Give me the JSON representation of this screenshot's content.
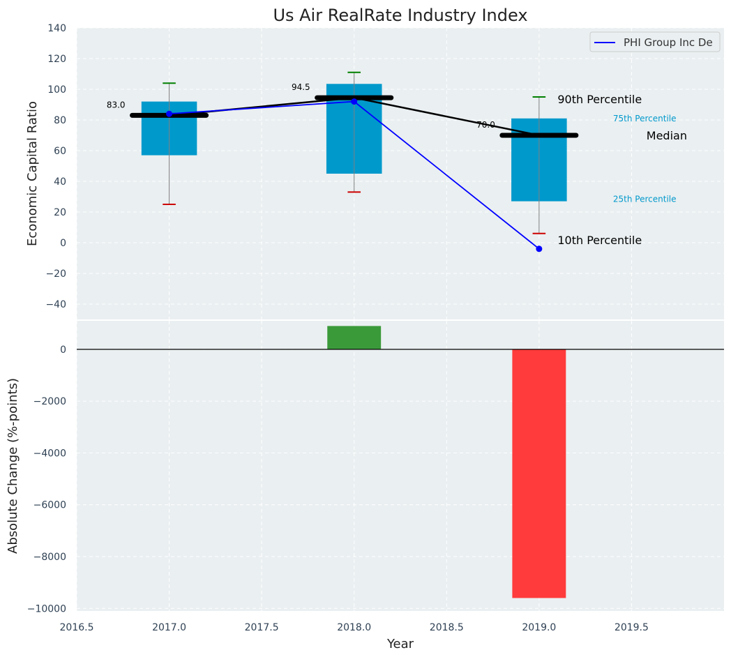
{
  "chart_data": {
    "type": "box-percentile-with-change",
    "title": "Us Air RealRate Industry Index",
    "xlabel": "Year",
    "x_ticks": [
      "2016.5",
      "2017.0",
      "2017.5",
      "2018.0",
      "2018.5",
      "2019.0",
      "2019.5"
    ],
    "xlim": [
      2016.5,
      2020.0
    ],
    "grid": true,
    "top_panel": {
      "ylabel": "Economic Capital Ratio",
      "ylim": [
        -50,
        140
      ],
      "y_ticks": [
        "140",
        "120",
        "100",
        "80",
        "60",
        "40",
        "20",
        "0",
        "−20",
        "−40"
      ],
      "legend_placement": "top-right",
      "boxes": [
        {
          "x": 2017.0,
          "p10": 25,
          "p25": 57,
          "median": 83,
          "p75": 92,
          "p90": 104,
          "median_label": "83.0"
        },
        {
          "x": 2018.0,
          "p10": 33,
          "p25": 45,
          "median": 94.5,
          "p75": 103.5,
          "p90": 111,
          "median_label": "94.5"
        },
        {
          "x": 2019.0,
          "p10": 6,
          "p25": 27,
          "median": 70,
          "p75": 81,
          "p90": 95,
          "median_label": "70.0"
        }
      ],
      "company_series": {
        "name": "PHI Group Inc De",
        "color": "#0000ff",
        "x": [
          2017.0,
          2018.0,
          2019.0
        ],
        "values": [
          84,
          92,
          -4
        ]
      },
      "annotations": {
        "p90": "90th Percentile",
        "p75": "75th Percentile",
        "median": "Median",
        "p25": "25th Percentile",
        "p10": "10th Percentile"
      }
    },
    "bottom_panel": {
      "ylabel": "Absolute Change (%-points)",
      "ylim": [
        -10100,
        1100
      ],
      "y_ticks": [
        "0",
        "−2000",
        "−4000",
        "−6000",
        "−8000",
        "−10000"
      ],
      "bars": [
        {
          "x": 2018.0,
          "value": 900
        },
        {
          "x": 2019.0,
          "value": -9600
        }
      ]
    },
    "colors": {
      "box": "#0099cc",
      "median": "#000000",
      "p90_cap": "#008000",
      "p10_cap": "#cc0000",
      "positive_change": "#3a9a3a",
      "negative_change": "#ff3b3b",
      "panel_bg": "#eaeff1",
      "tick_text": "#2e4053"
    }
  }
}
